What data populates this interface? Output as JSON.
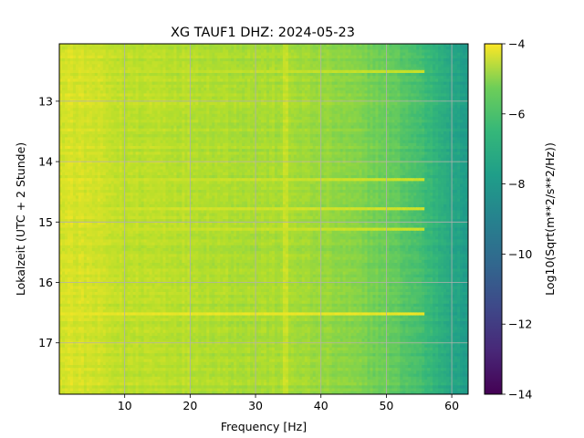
{
  "chart_data": {
    "type": "heatmap",
    "title": "XG TAUF1  DHZ: 2024-05-23",
    "xlabel": "Frequency [Hz]",
    "ylabel": "Lokalzeit (UTC + 2 Stunde)",
    "xlim": [
      0,
      62.5
    ],
    "ylim": [
      17.85,
      12.05
    ],
    "y_inverted": true,
    "x_ticks": [
      10,
      20,
      30,
      40,
      50,
      60
    ],
    "x_tick_labels": [
      "10",
      "20",
      "30",
      "40",
      "50",
      "60"
    ],
    "y_ticks": [
      13,
      14,
      15,
      16,
      17
    ],
    "y_tick_labels": [
      "13",
      "14",
      "15",
      "16",
      "17"
    ],
    "grid": true,
    "colormap": "viridis",
    "colorbar": {
      "label": "Log10(Sqrt(m**2/s**2/Hz))",
      "range": [
        -14,
        -4
      ],
      "ticks": [
        -4,
        -6,
        -8,
        -10,
        -12,
        -14
      ],
      "tick_labels": [
        "−4",
        "−6",
        "−8",
        "−10",
        "−12",
        "−14"
      ]
    },
    "frequency_profile_hz": [
      0,
      5,
      10,
      15,
      20,
      25,
      30,
      35,
      40,
      45,
      50,
      55,
      58,
      60,
      62.5
    ],
    "frequency_profile_level": [
      -4.6,
      -4.7,
      -5.0,
      -5.0,
      -5.1,
      -5.2,
      -5.3,
      -5.3,
      -5.6,
      -5.9,
      -6.3,
      -7.0,
      -7.6,
      -8.0,
      -8.6
    ],
    "bright_lines": [
      {
        "time": 16.53,
        "level": -4.3
      },
      {
        "time": 14.8,
        "level": -4.7
      },
      {
        "time": 14.3,
        "level": -4.8
      },
      {
        "time": 15.1,
        "level": -4.8
      },
      {
        "time": 12.5,
        "level": -4.9
      }
    ],
    "bright_frequencies_hz": [
      34.5
    ]
  }
}
